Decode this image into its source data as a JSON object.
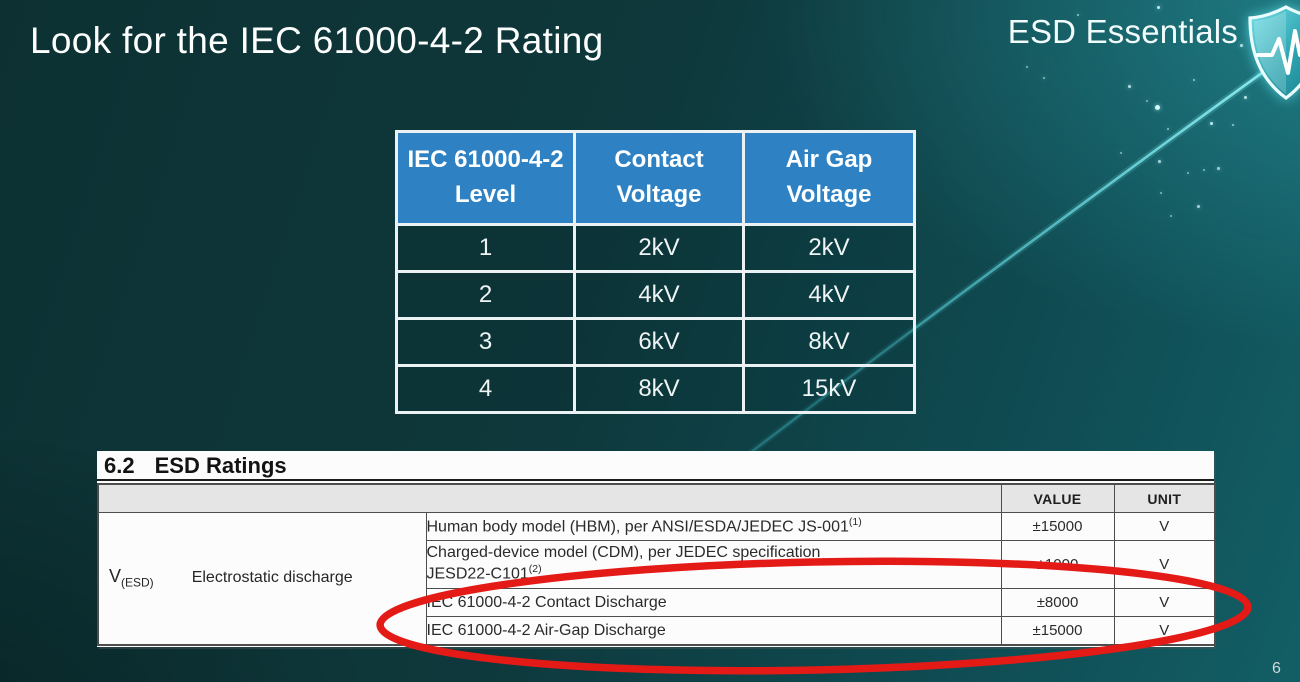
{
  "slide": {
    "title": "Look for the IEC 61000-4-2 Rating",
    "brand": "ESD Essentials",
    "page_number": "6"
  },
  "level_table": {
    "headers": [
      "IEC 61000-4-2\nLevel",
      "Contact\nVoltage",
      "Air Gap\nVoltage"
    ],
    "rows": [
      [
        "1",
        "2kV",
        "2kV"
      ],
      [
        "2",
        "4kV",
        "4kV"
      ],
      [
        "3",
        "6kV",
        "8kV"
      ],
      [
        "4",
        "8kV",
        "15kV"
      ]
    ],
    "header_bg": "#2e82c4"
  },
  "datasheet": {
    "section_number": "6.2",
    "section_title": "ESD Ratings",
    "col_headers": {
      "value": "VALUE",
      "unit": "UNIT"
    },
    "symbol": "V",
    "symbol_sub": "(ESD)",
    "parameter": "Electrostatic discharge",
    "rows": [
      {
        "desc": "Human body model (HBM), per ANSI/ESDA/JEDEC JS-001",
        "sup": "(1)",
        "value": "±15000",
        "unit": "V"
      },
      {
        "desc": "Charged-device model (CDM), per JEDEC specification JESD22-C101",
        "sup": "(2)",
        "value": "±1000",
        "unit": "V"
      },
      {
        "desc": "IEC 61000-4-2 Contact Discharge",
        "sup": "",
        "value": "±8000",
        "unit": "V"
      },
      {
        "desc": "IEC 61000-4-2 Air-Gap Discharge",
        "sup": "",
        "value": "±15000",
        "unit": "V"
      }
    ]
  },
  "colors": {
    "background_teal": "#0e393c",
    "header_blue": "#2e82c4",
    "highlight_red": "#e41a17",
    "accent_cyan": "#46d2dc"
  }
}
